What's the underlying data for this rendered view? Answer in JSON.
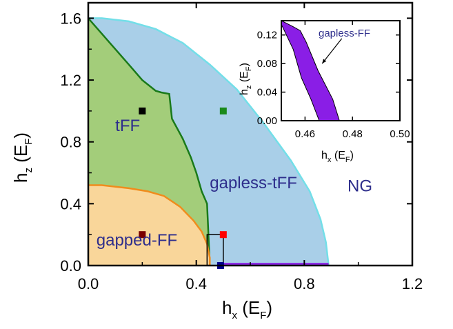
{
  "chart_data": [
    {
      "type": "area",
      "title": "",
      "x_axis": {
        "label_main": "h",
        "label_sub": "x",
        "label_unit": "E",
        "label_unit_sub": "F",
        "range": [
          0.0,
          1.2
        ],
        "ticks": [
          "0.0",
          "0.4",
          "0.8",
          "1.2"
        ]
      },
      "y_axis": {
        "label_main": "h",
        "label_sub": "z",
        "label_unit": "E",
        "label_unit_sub": "F",
        "range": [
          0.0,
          1.7
        ],
        "ticks": [
          "0.0",
          "0.4",
          "0.8",
          "1.2",
          "1.6"
        ]
      },
      "grid": false,
      "regions": [
        {
          "name": "NG-boundary",
          "label": "",
          "color": "#a9cfe8",
          "edge": "#73dfe8",
          "points": [
            [
              0,
              0
            ],
            [
              0,
              1.6
            ],
            [
              0.05,
              1.6
            ],
            [
              0.15,
              1.58
            ],
            [
              0.25,
              1.53
            ],
            [
              0.35,
              1.44
            ],
            [
              0.45,
              1.3
            ],
            [
              0.55,
              1.14
            ],
            [
              0.65,
              0.92
            ],
            [
              0.75,
              0.68
            ],
            [
              0.82,
              0.48
            ],
            [
              0.86,
              0.3
            ],
            [
              0.88,
              0.15
            ],
            [
              0.89,
              0.0
            ]
          ]
        },
        {
          "name": "tFF",
          "label": "tFF",
          "color": "#a3cd7a",
          "edge": "#1a7a1a",
          "points": [
            [
              0,
              0
            ],
            [
              0,
              1.6
            ],
            [
              0.05,
              1.5
            ],
            [
              0.1,
              1.4
            ],
            [
              0.15,
              1.3
            ],
            [
              0.2,
              1.2
            ],
            [
              0.25,
              1.13
            ],
            [
              0.27,
              1.12
            ],
            [
              0.3,
              1.11
            ],
            [
              0.31,
              0.95
            ],
            [
              0.35,
              0.82
            ],
            [
              0.38,
              0.7
            ],
            [
              0.4,
              0.6
            ],
            [
              0.42,
              0.48
            ],
            [
              0.44,
              0.4
            ],
            [
              0.45,
              0.0
            ]
          ]
        },
        {
          "name": "gapped-FF",
          "label": "gapped-FF",
          "color": "#f9d69a",
          "edge": "#f08c1c",
          "points": [
            [
              0,
              0
            ],
            [
              0,
              0.52
            ],
            [
              0.05,
              0.52
            ],
            [
              0.15,
              0.5
            ],
            [
              0.22,
              0.48
            ],
            [
              0.28,
              0.45
            ],
            [
              0.34,
              0.38
            ],
            [
              0.39,
              0.29
            ],
            [
              0.42,
              0.22
            ],
            [
              0.44,
              0.14
            ],
            [
              0.45,
              0.05
            ],
            [
              0.45,
              0.0
            ]
          ]
        }
      ],
      "gapless_FF_strip": {
        "color": "#8a2be2",
        "x": [
          0.48,
          0.89
        ]
      },
      "region_labels": [
        {
          "text": "tFF",
          "x": 0.1,
          "y": 0.87
        },
        {
          "text": "gapless-tFF",
          "x": 0.45,
          "y": 0.5
        },
        {
          "text": "NG",
          "x": 0.96,
          "y": 0.48
        },
        {
          "text": "gapped-FF",
          "x": 0.03,
          "y": 0.13
        }
      ],
      "markers": [
        {
          "x": 0.2,
          "y": 1.0,
          "color": "#000000"
        },
        {
          "x": 0.5,
          "y": 1.0,
          "color": "#1a8a1a"
        },
        {
          "x": 0.2,
          "y": 0.2,
          "color": "#7a0000"
        },
        {
          "x": 0.5,
          "y": 0.2,
          "color": "#ff0000"
        },
        {
          "x": 0.49,
          "y": 0.0,
          "color": "#00008b"
        }
      ],
      "zoom_box": {
        "x": [
          0.44,
          0.5
        ],
        "y": [
          0.0,
          0.2
        ]
      }
    },
    {
      "type": "area",
      "title": "",
      "x_axis": {
        "label_main": "h",
        "label_sub": "x",
        "label_unit": "E",
        "label_unit_sub": "F",
        "range": [
          0.45,
          0.5
        ],
        "ticks": [
          "0.46",
          "0.48",
          "0.50"
        ]
      },
      "y_axis": {
        "label_main": "h",
        "label_sub": "z",
        "label_unit": "E",
        "label_unit_sub": "F",
        "range": [
          0.0,
          0.14
        ],
        "ticks": [
          "0.00",
          "0.04",
          "0.08",
          "0.12"
        ]
      },
      "region": {
        "name": "gapless-FF",
        "label": "gapless-FF",
        "color": "#8a1ee6",
        "points": [
          [
            0.45,
            0.14
          ],
          [
            0.4548,
            0.132
          ],
          [
            0.458,
            0.126
          ],
          [
            0.4605,
            0.11
          ],
          [
            0.4655,
            0.07
          ],
          [
            0.4717,
            0.03
          ],
          [
            0.4745,
            0.0
          ],
          [
            0.466,
            0.0
          ],
          [
            0.4625,
            0.03
          ],
          [
            0.4585,
            0.06
          ],
          [
            0.455,
            0.1
          ],
          [
            0.45,
            0.135
          ]
        ]
      },
      "annotation_arrow": {
        "from": [
          0.4755,
          0.115
        ],
        "to": [
          0.4672,
          0.08
        ]
      }
    }
  ]
}
